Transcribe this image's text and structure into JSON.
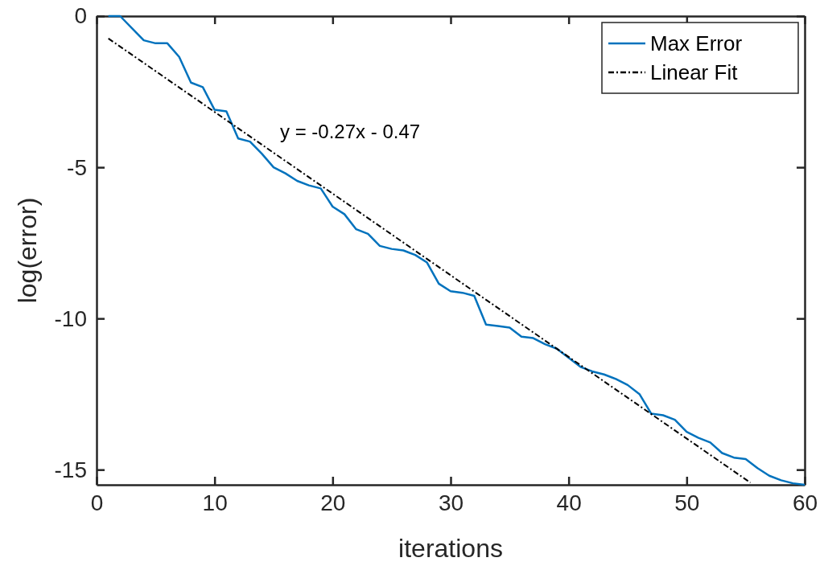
{
  "chart_data": {
    "type": "line",
    "xlabel": "iterations",
    "ylabel": "log(error)",
    "xlim": [
      0,
      60
    ],
    "ylim": [
      -15.5,
      0
    ],
    "xticks": [
      0,
      10,
      20,
      30,
      40,
      50,
      60
    ],
    "yticks": [
      -15,
      -10,
      -5,
      0
    ],
    "grid": false,
    "legend": "top right",
    "marker": "none",
    "annotations": [
      "y = -0.27x - 0.47"
    ],
    "series": [
      {
        "name": "Max Error",
        "color": "#0072bd",
        "line_style": "solid",
        "x": [
          1,
          2,
          3,
          4,
          5,
          6,
          7,
          8,
          9,
          10,
          11,
          12,
          13,
          14,
          15,
          16,
          17,
          18,
          19,
          20,
          21,
          22,
          23,
          24,
          25,
          26,
          27,
          28,
          29,
          30,
          31,
          32,
          33,
          34,
          35,
          36,
          37,
          38,
          39,
          40,
          41,
          42,
          43,
          44,
          45,
          46,
          47,
          48,
          49,
          50,
          51,
          52,
          53,
          54,
          55,
          56,
          57,
          58,
          59,
          60
        ],
        "values": [
          0,
          0,
          -0.4,
          -0.8,
          -0.9,
          -0.9,
          -1.35,
          -2.2,
          -2.35,
          -3.1,
          -3.15,
          -4.05,
          -4.15,
          -4.55,
          -5.0,
          -5.2,
          -5.45,
          -5.6,
          -5.7,
          -6.3,
          -6.55,
          -7.05,
          -7.2,
          -7.6,
          -7.7,
          -7.75,
          -7.9,
          -8.15,
          -8.85,
          -9.1,
          -9.15,
          -9.25,
          -10.2,
          -10.25,
          -10.3,
          -10.6,
          -10.65,
          -10.85,
          -11.0,
          -11.3,
          -11.6,
          -11.75,
          -11.85,
          -12.0,
          -12.2,
          -12.5,
          -13.15,
          -13.2,
          -13.35,
          -13.75,
          -13.95,
          -14.1,
          -14.45,
          -14.6,
          -14.65,
          -14.95,
          -15.2,
          -15.35,
          -15.45,
          -15.5
        ]
      },
      {
        "name": "Linear Fit",
        "color": "#000000",
        "line_style": "dashed",
        "x": [
          1,
          55.4
        ],
        "values": [
          -0.74,
          -15.43
        ]
      }
    ]
  }
}
